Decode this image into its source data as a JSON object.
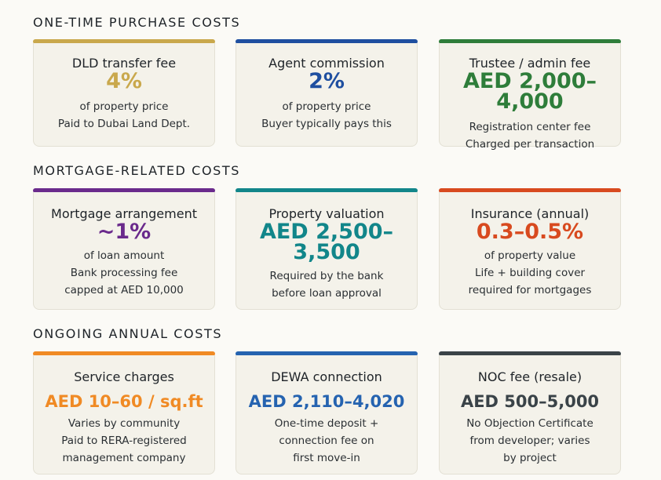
{
  "sections": [
    {
      "heading": "ONE-TIME PURCHASE COSTS",
      "cards": [
        {
          "title": "DLD transfer fee",
          "value": "4%",
          "lines": [
            "of property price",
            "Paid to Dubai Land Dept."
          ]
        },
        {
          "title": "Agent commission",
          "value": "2%",
          "lines": [
            "of property price",
            "Buyer typically pays this"
          ]
        },
        {
          "title": "Trustee / admin fee",
          "value": "AED 2,000–4,000",
          "lines": [
            "Registration center fee",
            "Charged per transaction"
          ]
        }
      ]
    },
    {
      "heading": "MORTGAGE-RELATED COSTS",
      "cards": [
        {
          "title": "Mortgage arrangement",
          "value": "~1%",
          "lines": [
            "of loan amount",
            "Bank processing fee",
            "capped at AED 10,000"
          ]
        },
        {
          "title": "Property valuation",
          "value": "AED 2,500–3,500",
          "lines": [
            "Required by the bank",
            "before loan approval"
          ]
        },
        {
          "title": "Insurance (annual)",
          "value": "0.3–0.5%",
          "lines": [
            "of property value",
            "Life + building cover",
            "required for mortgages"
          ]
        }
      ]
    },
    {
      "heading": "ONGOING ANNUAL COSTS",
      "cards": [
        {
          "title": "Service charges",
          "value": "AED 10–60 / sq.ft",
          "lines": [
            "Varies by community",
            "Paid to RERA-registered",
            "management company"
          ]
        },
        {
          "title": "DEWA connection",
          "value": "AED 2,110–4,020",
          "lines": [
            "One-time deposit +",
            "connection fee on",
            "first move-in"
          ]
        },
        {
          "title": "NOC fee (resale)",
          "value": "AED 500–5,000",
          "lines": [
            "No Objection Certificate",
            "from developer; varies",
            "by project"
          ]
        }
      ]
    }
  ]
}
